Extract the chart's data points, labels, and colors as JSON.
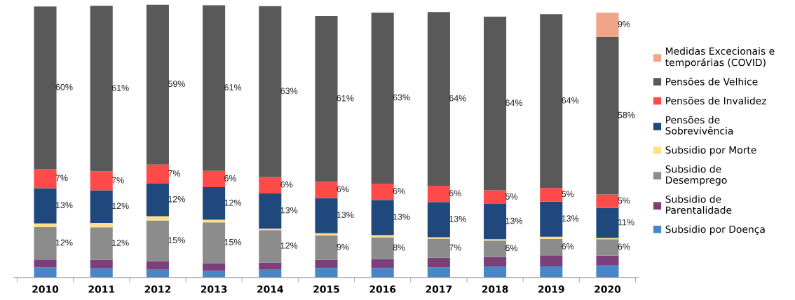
{
  "chart_data": {
    "type": "bar",
    "stacked": true,
    "tick_labels": "x",
    "legend": "right",
    "categories": [
      "2010",
      "2011",
      "2012",
      "2013",
      "2014",
      "2015",
      "2016",
      "2017",
      "2018",
      "2019",
      "2020"
    ],
    "series": [
      {
        "name": "Subsidio por Doença",
        "color": "#4a86c5",
        "values": [
          3.7,
          3.4,
          2.9,
          2.4,
          2.9,
          3.5,
          3.5,
          3.8,
          4.1,
          4.1,
          4.6
        ],
        "value_labels": [
          null,
          null,
          null,
          null,
          null,
          null,
          null,
          null,
          null,
          null,
          null
        ]
      },
      {
        "name": "Subsidio de\nParentalidade",
        "color": "#7b3f7a",
        "values": [
          2.9,
          3.1,
          3.1,
          2.9,
          2.6,
          3.0,
          3.3,
          3.5,
          3.5,
          4.1,
          3.5
        ],
        "value_labels": [
          null,
          null,
          null,
          null,
          null,
          null,
          null,
          null,
          null,
          null,
          null
        ]
      },
      {
        "name": "Subsidio de\nDesemprego",
        "color": "#8c8c8c",
        "values": [
          12,
          12,
          15,
          15,
          12,
          9,
          8,
          7,
          6,
          6,
          6
        ],
        "value_labels": [
          "12%",
          "12%",
          "15%",
          "15%",
          "12%",
          "9%",
          "8%",
          "7%",
          "6%",
          "6%",
          "6%"
        ]
      },
      {
        "name": "Subsidio por Morte",
        "color": "#ffe08a",
        "values": [
          1.3,
          1.6,
          1.6,
          1.0,
          0.5,
          0.8,
          0.8,
          0.5,
          0.5,
          0.8,
          0.5
        ],
        "value_labels": [
          null,
          null,
          null,
          null,
          null,
          null,
          null,
          null,
          null,
          null,
          null
        ]
      },
      {
        "name": "Pensões de\nSobrevivência",
        "color": "#1f497d",
        "values": [
          13,
          12,
          12,
          12,
          13,
          13,
          13,
          13,
          13,
          13,
          11
        ],
        "value_labels": [
          "13%",
          "12%",
          "12%",
          "12%",
          "13%",
          "13%",
          "13%",
          "13%",
          "13%",
          "13%",
          "11%"
        ]
      },
      {
        "name": "Pensões de Invalidez",
        "color": "#ff4a4a",
        "values": [
          7,
          7,
          7,
          6,
          6,
          6,
          6,
          6,
          5,
          5,
          5
        ],
        "value_labels": [
          "7%",
          "7%",
          "7%",
          "6%",
          "6%",
          "6%",
          "6%",
          "6%",
          "5%",
          "5%",
          "5%"
        ]
      },
      {
        "name": "Pensões de Velhice",
        "color": "#595959",
        "values": [
          60,
          61,
          59,
          61,
          63,
          61,
          63,
          64,
          64,
          64,
          58
        ],
        "value_labels": [
          "60%",
          "61%",
          "59%",
          "61%",
          "63%",
          "61%",
          "63%",
          "64%",
          "64%",
          "64%",
          "58%"
        ]
      },
      {
        "name": "Medidas Excecionais e\ntemporárias (COVID)",
        "color": "#f0a488",
        "values": [
          null,
          null,
          null,
          null,
          null,
          null,
          null,
          null,
          null,
          null,
          9
        ],
        "value_labels": [
          null,
          null,
          null,
          null,
          null,
          null,
          null,
          null,
          null,
          null,
          "9%"
        ]
      }
    ]
  }
}
